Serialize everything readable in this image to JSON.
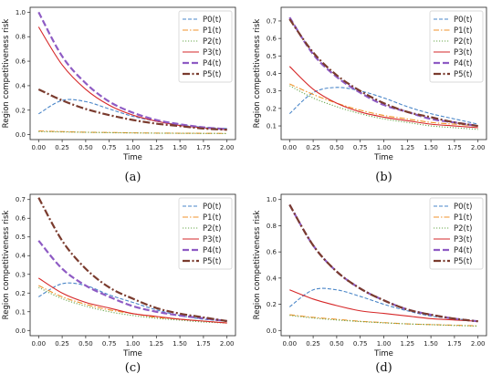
{
  "colors": {
    "P0": "#4a86c8",
    "P1": "#f0932b",
    "P2": "#6aa84f",
    "P3": "#d62728",
    "P4": "#8e5bc4",
    "P5": "#7a3b2e"
  },
  "chart_data": [
    {
      "type": "line",
      "caption": "(a)",
      "xlabel": "Time",
      "ylabel": "Region competitiveness risk",
      "xlim": [
        0,
        2
      ],
      "ylim": [
        0,
        1.0
      ],
      "xticks": [
        "0.00",
        "0.25",
        "0.50",
        "0.75",
        "1.00",
        "1.25",
        "1.50",
        "1.75",
        "2.00"
      ],
      "yticks": [
        "0.0",
        "0.2",
        "0.4",
        "0.6",
        "0.8",
        "1.0"
      ],
      "legend": "top-right",
      "x": [
        0,
        0.25,
        0.5,
        0.75,
        1.0,
        1.25,
        1.5,
        1.75,
        2.0
      ],
      "series": [
        {
          "name": "P0(t)",
          "key": "P0",
          "values": [
            0.17,
            0.28,
            0.27,
            0.21,
            0.15,
            0.11,
            0.08,
            0.06,
            0.05
          ]
        },
        {
          "name": "P1(t)",
          "key": "P1",
          "values": [
            0.03,
            0.025,
            0.02,
            0.018,
            0.015,
            0.013,
            0.012,
            0.011,
            0.01
          ]
        },
        {
          "name": "P2(t)",
          "key": "P2",
          "values": [
            0.025,
            0.022,
            0.019,
            0.016,
            0.014,
            0.012,
            0.011,
            0.01,
            0.009
          ]
        },
        {
          "name": "P3(t)",
          "key": "P3",
          "values": [
            0.88,
            0.57,
            0.37,
            0.24,
            0.16,
            0.11,
            0.075,
            0.055,
            0.04
          ]
        },
        {
          "name": "P4(t)",
          "key": "P4",
          "values": [
            1.0,
            0.64,
            0.42,
            0.27,
            0.18,
            0.12,
            0.085,
            0.06,
            0.045
          ]
        },
        {
          "name": "P5(t)",
          "key": "P5",
          "values": [
            0.37,
            0.28,
            0.21,
            0.16,
            0.12,
            0.09,
            0.07,
            0.05,
            0.04
          ]
        }
      ]
    },
    {
      "type": "line",
      "caption": "(b)",
      "xlabel": "Time",
      "ylabel": "Region competitiveness risk",
      "xlim": [
        0,
        2
      ],
      "ylim": [
        0.05,
        0.75
      ],
      "xticks": [
        "0.00",
        "0.25",
        "0.50",
        "0.75",
        "1.00",
        "1.25",
        "1.50",
        "1.75",
        "2.00"
      ],
      "yticks": [
        "0.1",
        "0.2",
        "0.3",
        "0.4",
        "0.5",
        "0.6",
        "0.7"
      ],
      "legend": "top-right",
      "x": [
        0,
        0.25,
        0.5,
        0.75,
        1.0,
        1.25,
        1.5,
        1.75,
        2.0
      ],
      "series": [
        {
          "name": "P0(t)",
          "key": "P0",
          "values": [
            0.17,
            0.29,
            0.32,
            0.3,
            0.26,
            0.21,
            0.17,
            0.14,
            0.11
          ]
        },
        {
          "name": "P1(t)",
          "key": "P1",
          "values": [
            0.34,
            0.28,
            0.23,
            0.19,
            0.16,
            0.14,
            0.12,
            0.11,
            0.1
          ]
        },
        {
          "name": "P2(t)",
          "key": "P2",
          "values": [
            0.33,
            0.26,
            0.21,
            0.17,
            0.14,
            0.12,
            0.1,
            0.09,
            0.08
          ]
        },
        {
          "name": "P3(t)",
          "key": "P3",
          "values": [
            0.44,
            0.31,
            0.23,
            0.18,
            0.15,
            0.13,
            0.11,
            0.1,
            0.09
          ]
        },
        {
          "name": "P4(t)",
          "key": "P4",
          "values": [
            0.72,
            0.51,
            0.38,
            0.29,
            0.22,
            0.18,
            0.14,
            0.12,
            0.1
          ]
        },
        {
          "name": "P5(t)",
          "key": "P5",
          "values": [
            0.71,
            0.52,
            0.39,
            0.3,
            0.23,
            0.18,
            0.15,
            0.12,
            0.1
          ]
        }
      ]
    },
    {
      "type": "line",
      "caption": "(c)",
      "xlabel": "Time",
      "ylabel": "Region competitiveness risk",
      "xlim": [
        0,
        2
      ],
      "ylim": [
        0,
        0.7
      ],
      "xticks": [
        "0.00",
        "0.25",
        "0.50",
        "0.75",
        "1.00",
        "1.25",
        "1.50",
        "1.75",
        "2.00"
      ],
      "yticks": [
        "0.0",
        "0.1",
        "0.2",
        "0.3",
        "0.4",
        "0.5",
        "0.6",
        "0.7"
      ],
      "legend": "top-right",
      "x": [
        0,
        0.25,
        0.5,
        0.75,
        1.0,
        1.25,
        1.5,
        1.75,
        2.0
      ],
      "series": [
        {
          "name": "P0(t)",
          "key": "P0",
          "values": [
            0.18,
            0.25,
            0.24,
            0.19,
            0.15,
            0.11,
            0.08,
            0.06,
            0.05
          ]
        },
        {
          "name": "P1(t)",
          "key": "P1",
          "values": [
            0.24,
            0.18,
            0.14,
            0.11,
            0.09,
            0.07,
            0.06,
            0.05,
            0.04
          ]
        },
        {
          "name": "P2(t)",
          "key": "P2",
          "values": [
            0.23,
            0.17,
            0.13,
            0.1,
            0.08,
            0.065,
            0.055,
            0.045,
            0.04
          ]
        },
        {
          "name": "P3(t)",
          "key": "P3",
          "values": [
            0.28,
            0.2,
            0.15,
            0.12,
            0.09,
            0.075,
            0.06,
            0.05,
            0.04
          ]
        },
        {
          "name": "P4(t)",
          "key": "P4",
          "values": [
            0.48,
            0.33,
            0.24,
            0.18,
            0.13,
            0.1,
            0.08,
            0.065,
            0.05
          ]
        },
        {
          "name": "P5(t)",
          "key": "P5",
          "values": [
            0.71,
            0.48,
            0.33,
            0.23,
            0.17,
            0.12,
            0.09,
            0.07,
            0.05
          ]
        }
      ]
    },
    {
      "type": "line",
      "caption": "(d)",
      "xlabel": "Time",
      "ylabel": "Region competitiveness risk",
      "xlim": [
        0,
        2
      ],
      "ylim": [
        0,
        1.0
      ],
      "xticks": [
        "0.00",
        "0.25",
        "0.50",
        "0.75",
        "1.00",
        "1.25",
        "1.50",
        "1.75",
        "2.00"
      ],
      "yticks": [
        "0.0",
        "0.2",
        "0.4",
        "0.6",
        "0.8",
        "1.0"
      ],
      "legend": "top-right",
      "x": [
        0,
        0.25,
        0.5,
        0.75,
        1.0,
        1.25,
        1.5,
        1.75,
        2.0
      ],
      "series": [
        {
          "name": "P0(t)",
          "key": "P0",
          "values": [
            0.18,
            0.31,
            0.31,
            0.26,
            0.2,
            0.15,
            0.11,
            0.09,
            0.07
          ]
        },
        {
          "name": "P1(t)",
          "key": "P1",
          "values": [
            0.12,
            0.1,
            0.085,
            0.07,
            0.06,
            0.05,
            0.045,
            0.04,
            0.035
          ]
        },
        {
          "name": "P2(t)",
          "key": "P2",
          "values": [
            0.115,
            0.095,
            0.08,
            0.068,
            0.058,
            0.05,
            0.044,
            0.038,
            0.033
          ]
        },
        {
          "name": "P3(t)",
          "key": "P3",
          "values": [
            0.31,
            0.24,
            0.19,
            0.15,
            0.13,
            0.11,
            0.09,
            0.08,
            0.07
          ]
        },
        {
          "name": "P4(t)",
          "key": "P4",
          "values": [
            0.96,
            0.65,
            0.45,
            0.32,
            0.23,
            0.16,
            0.12,
            0.09,
            0.07
          ]
        },
        {
          "name": "P5(t)",
          "key": "P5",
          "values": [
            0.96,
            0.65,
            0.45,
            0.32,
            0.23,
            0.16,
            0.12,
            0.09,
            0.07
          ]
        }
      ]
    }
  ]
}
